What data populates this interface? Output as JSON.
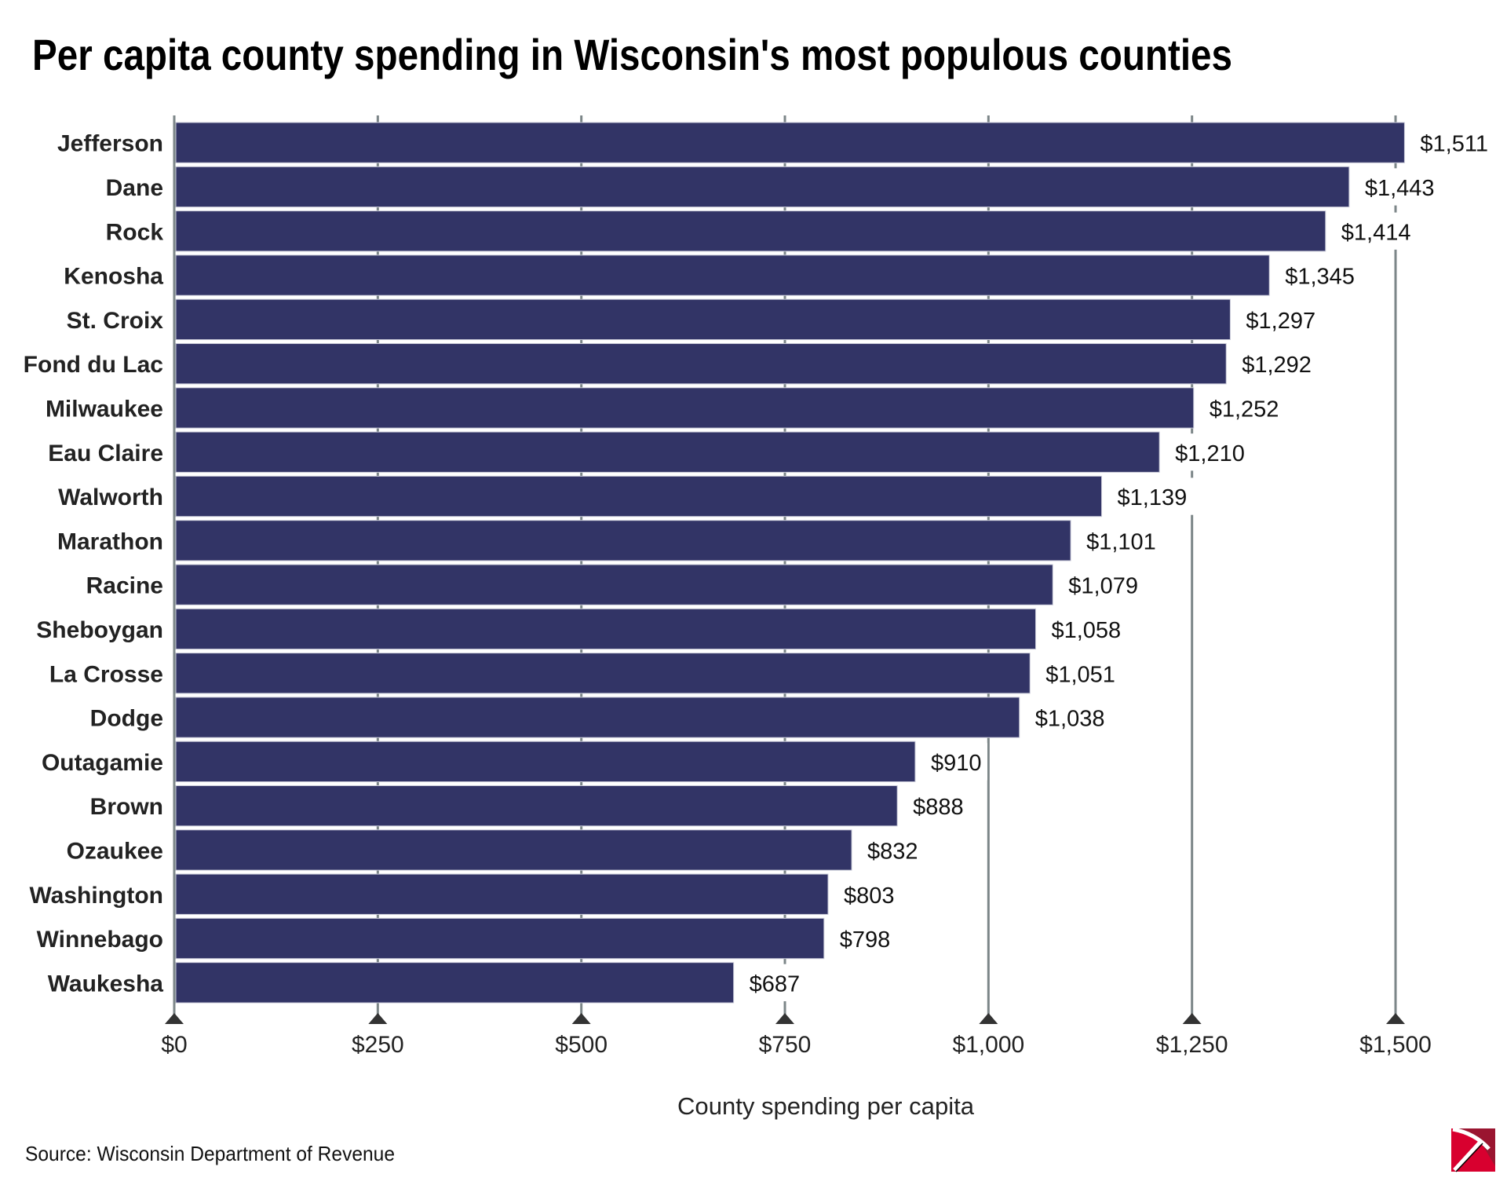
{
  "chart_data": {
    "type": "bar",
    "orientation": "horizontal",
    "title": "Per capita county spending in Wisconsin's most populous counties",
    "xlabel": "County spending per capita",
    "ylabel": "",
    "source": "Source: Wisconsin Department of Revenue",
    "categories": [
      "Jefferson",
      "Dane",
      "Rock",
      "Kenosha",
      "St. Croix",
      "Fond du Lac",
      "Milwaukee",
      "Eau Claire",
      "Walworth",
      "Marathon",
      "Racine",
      "Sheboygan",
      "La Crosse",
      "Dodge",
      "Outagamie",
      "Brown",
      "Ozaukee",
      "Washington",
      "Winnebago",
      "Waukesha"
    ],
    "values": [
      1511,
      1443,
      1414,
      1345,
      1297,
      1292,
      1252,
      1210,
      1139,
      1101,
      1079,
      1058,
      1051,
      1038,
      910,
      888,
      832,
      803,
      798,
      687
    ],
    "value_labels": [
      "$1,511",
      "$1,443",
      "$1,414",
      "$1,345",
      "$1,297",
      "$1,292",
      "$1,252",
      "$1,210",
      "$1,139",
      "$1,101",
      "$1,079",
      "$1,058",
      "$1,051",
      "$1,038",
      "$910",
      "$888",
      "$832",
      "$803",
      "$798",
      "$687"
    ],
    "xlim": [
      0,
      1500
    ],
    "xticks": [
      0,
      250,
      500,
      750,
      1000,
      1250,
      1500
    ],
    "xtick_labels": [
      "$0",
      "$250",
      "$500",
      "$750",
      "$1,000",
      "$1,250",
      "$1,500"
    ],
    "grid": true,
    "legend": "none",
    "colors": {
      "bar": "#323466",
      "bar_edge": "#c9cad8",
      "grid": "#7c8688",
      "tick_marker": "#333333"
    }
  },
  "logo": {
    "icon": "pickaxe-logo-icon",
    "colors": {
      "main": "#d8002f",
      "corner": "#9a1530"
    }
  }
}
